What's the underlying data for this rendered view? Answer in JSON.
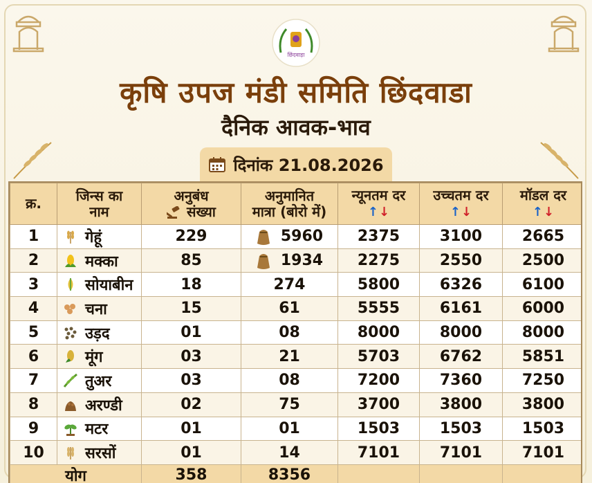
{
  "header": {
    "title": "कृषि उपज मंडी समिति छिंदवाडा",
    "subtitle": "दैनिक आवक-भाव",
    "date_label": "दिनांक 21.08.2026",
    "logo_caption": "छिंदवाड़ा"
  },
  "table": {
    "columns": [
      "क्र.",
      "जिन्स का नाम",
      "अनुबंध संख्या",
      "अनुमानित मात्रा (बोरो में)",
      "न्यूनतम दर",
      "उच्चतम दर",
      "मॉडल दर"
    ],
    "column_lines": {
      "crop": [
        "जिन्स का",
        "नाम"
      ],
      "contracts": [
        "अनुबंध",
        "संख्या"
      ],
      "quantity": [
        "अनुमानित",
        "मात्रा (बोरो में)"
      ]
    },
    "rows": [
      {
        "sn": "1",
        "crop": "गेहूं",
        "icon": "wheat-icon",
        "contracts": "229",
        "quantity": "5960",
        "sack": true,
        "min": "2375",
        "max": "3100",
        "modal": "2665"
      },
      {
        "sn": "2",
        "crop": "मक्का",
        "icon": "corn-icon",
        "contracts": "85",
        "quantity": "1934",
        "sack": true,
        "min": "2275",
        "max": "2550",
        "modal": "2500"
      },
      {
        "sn": "3",
        "crop": "सोयाबीन",
        "icon": "soybean-icon",
        "contracts": "18",
        "quantity": "274",
        "sack": false,
        "min": "5800",
        "max": "6326",
        "modal": "6100"
      },
      {
        "sn": "4",
        "crop": "चना",
        "icon": "chickpea-icon",
        "contracts": "15",
        "quantity": "61",
        "sack": false,
        "min": "5555",
        "max": "6161",
        "modal": "6000"
      },
      {
        "sn": "5",
        "crop": "उड़द",
        "icon": "urad-icon",
        "contracts": "01",
        "quantity": "08",
        "sack": false,
        "min": "8000",
        "max": "8000",
        "modal": "8000"
      },
      {
        "sn": "6",
        "crop": "मूंग",
        "icon": "moong-icon",
        "contracts": "03",
        "quantity": "21",
        "sack": false,
        "min": "5703",
        "max": "6762",
        "modal": "5851"
      },
      {
        "sn": "7",
        "crop": "तुअर",
        "icon": "tur-icon",
        "contracts": "03",
        "quantity": "08",
        "sack": false,
        "min": "7200",
        "max": "7360",
        "modal": "7250"
      },
      {
        "sn": "8",
        "crop": "अरण्डी",
        "icon": "castor-icon",
        "contracts": "02",
        "quantity": "75",
        "sack": false,
        "min": "3700",
        "max": "3800",
        "modal": "3800"
      },
      {
        "sn": "9",
        "crop": "मटर",
        "icon": "pea-icon",
        "contracts": "01",
        "quantity": "01",
        "sack": false,
        "min": "1503",
        "max": "1503",
        "modal": "1503"
      },
      {
        "sn": "10",
        "crop": "सरसों",
        "icon": "mustard-icon",
        "contracts": "01",
        "quantity": "14",
        "sack": false,
        "min": "7101",
        "max": "7101",
        "modal": "7101"
      }
    ],
    "total": {
      "label": "योग",
      "contracts": "358",
      "quantity": "8356"
    }
  },
  "colors": {
    "title": "#7a3f0b",
    "header_bg": "#f3d9a6",
    "arrow_up": "#1a63c8",
    "arrow_down": "#d0202a"
  }
}
